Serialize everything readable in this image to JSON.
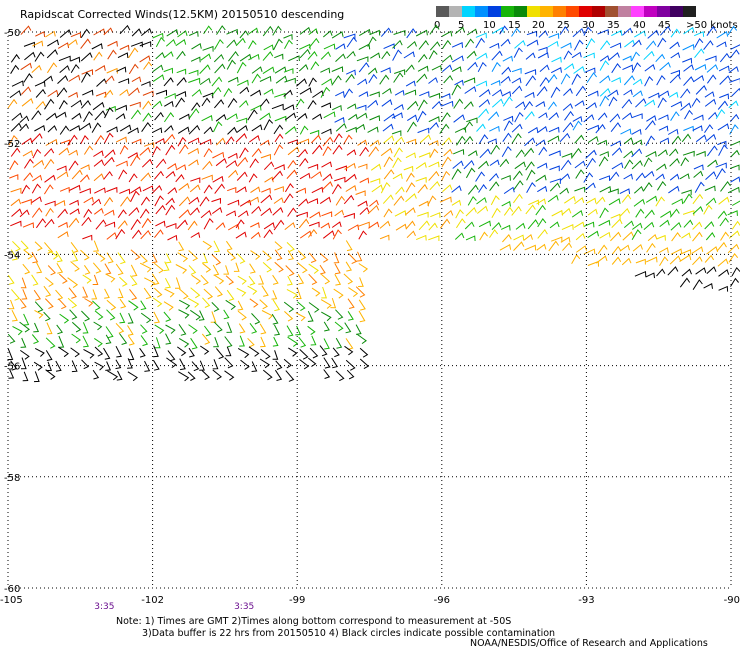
{
  "title": "Rapidscat Corrected Winds(12.5KM) 20150510 descending",
  "colorbar": {
    "labels": [
      "0",
      "5",
      "10",
      "15",
      "20",
      "25",
      "30",
      "35",
      "40",
      "45",
      ">50 knots"
    ],
    "colors": [
      "#5a5a5a",
      "#b4b4b4",
      "#00d4ff",
      "#0090ff",
      "#0040e0",
      "#17b50a",
      "#0a8a0a",
      "#f0e000",
      "#ffb400",
      "#ff8000",
      "#ff4a00",
      "#e00000",
      "#b00000",
      "#a05030",
      "#c080a0",
      "#ff40ff",
      "#c000c0",
      "#8000a0",
      "#400060",
      "#202020"
    ]
  },
  "map": {
    "lat_labels": [
      "-50",
      "-52",
      "-54",
      "-56",
      "-58",
      "-60"
    ],
    "lon_labels": [
      "-105",
      "-102",
      "-99",
      "-96",
      "-93",
      "-90"
    ],
    "lat_range": [
      -60,
      -50
    ],
    "lon_range": [
      -105,
      -90
    ],
    "grid": "dotted",
    "times": [
      {
        "label": "3:35",
        "lon": -103.0
      },
      {
        "label": "3:35",
        "lon": -100.1
      }
    ]
  },
  "notes": {
    "line1": "Note: 1) Times are GMT 2)Times along bottom correspond to measurement at -50S",
    "line2": "3)Data buffer is 22 hrs from 20150510 4) Black circles indicate possible contamination"
  },
  "credit": "NOAA/NESDIS/Office of Research and Applications"
}
